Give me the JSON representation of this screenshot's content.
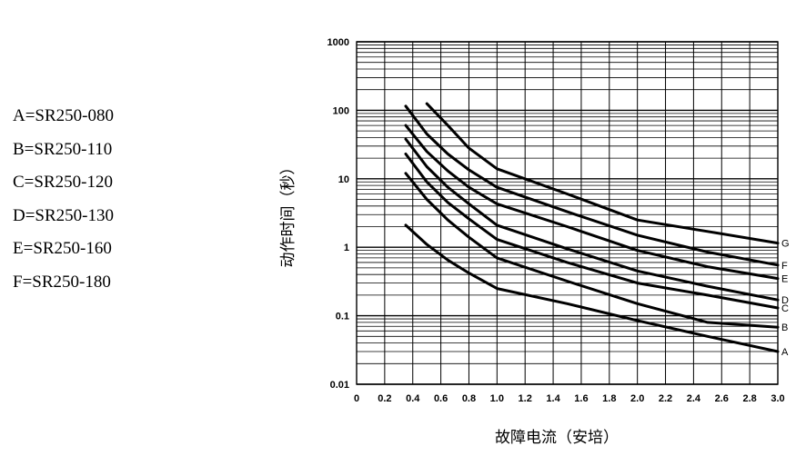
{
  "legend": [
    "A=SR250-080",
    "B=SR250-110",
    "C=SR250-120",
    "D=SR250-130",
    "E=SR250-160",
    "F=SR250-180"
  ],
  "chart_data": {
    "type": "line",
    "title": "",
    "xlabel": "故障电流（安培）",
    "ylabel": "动作时间（秒）",
    "xlim": [
      0,
      3.0
    ],
    "ylim": [
      0.01,
      1000
    ],
    "yscale": "log",
    "grid": true,
    "x_ticks": [
      "0",
      "0.2",
      "0.4",
      "0.6",
      "0.8",
      "1.0",
      "1.2",
      "1.4",
      "1.6",
      "1.8",
      "2.0",
      "2.2",
      "2.4",
      "2.6",
      "2.8",
      "3.0"
    ],
    "y_ticks": [
      "1000",
      "100",
      "10",
      "1",
      "0.1",
      "0.01"
    ],
    "series": [
      {
        "name": "A",
        "x": [
          0.35,
          0.5,
          0.65,
          0.8,
          1.0,
          1.5,
          2.0,
          2.5,
          3.0
        ],
        "y": [
          2.1,
          1.1,
          0.65,
          0.42,
          0.25,
          0.15,
          0.085,
          0.05,
          0.03
        ]
      },
      {
        "name": "B",
        "x": [
          0.35,
          0.5,
          0.65,
          0.8,
          1.0,
          1.5,
          2.0,
          2.5,
          3.0
        ],
        "y": [
          12,
          5,
          2.5,
          1.4,
          0.7,
          0.32,
          0.15,
          0.08,
          0.068
        ]
      },
      {
        "name": "C",
        "x": [
          0.35,
          0.5,
          0.65,
          0.8,
          1.0,
          1.5,
          2.0,
          2.5,
          3.0
        ],
        "y": [
          23,
          9,
          4.5,
          2.6,
          1.3,
          0.6,
          0.3,
          0.2,
          0.13
        ]
      },
      {
        "name": "D",
        "x": [
          0.35,
          0.5,
          0.65,
          0.8,
          1.0,
          1.5,
          2.0,
          2.5,
          3.0
        ],
        "y": [
          38,
          15,
          7.5,
          4.3,
          2.1,
          0.95,
          0.45,
          0.27,
          0.17
        ]
      },
      {
        "name": "E",
        "x": [
          0.35,
          0.5,
          0.65,
          0.8,
          1.0,
          1.5,
          2.0,
          2.5,
          3.0
        ],
        "y": [
          60,
          25,
          13,
          7.5,
          4.3,
          2,
          0.9,
          0.52,
          0.35
        ]
      },
      {
        "name": "F",
        "x": [
          0.35,
          0.5,
          0.65,
          0.8,
          1.0,
          1.5,
          2.0,
          2.5,
          3.0
        ],
        "y": [
          115,
          45,
          23,
          13.5,
          7.5,
          3.3,
          1.5,
          0.85,
          0.55
        ]
      },
      {
        "name": "G",
        "x": [
          0.5,
          0.65,
          0.8,
          1.0,
          1.5,
          2.0,
          2.5,
          3.0
        ],
        "y": [
          125,
          60,
          28,
          14,
          6,
          2.5,
          1.7,
          1.15
        ]
      }
    ]
  }
}
